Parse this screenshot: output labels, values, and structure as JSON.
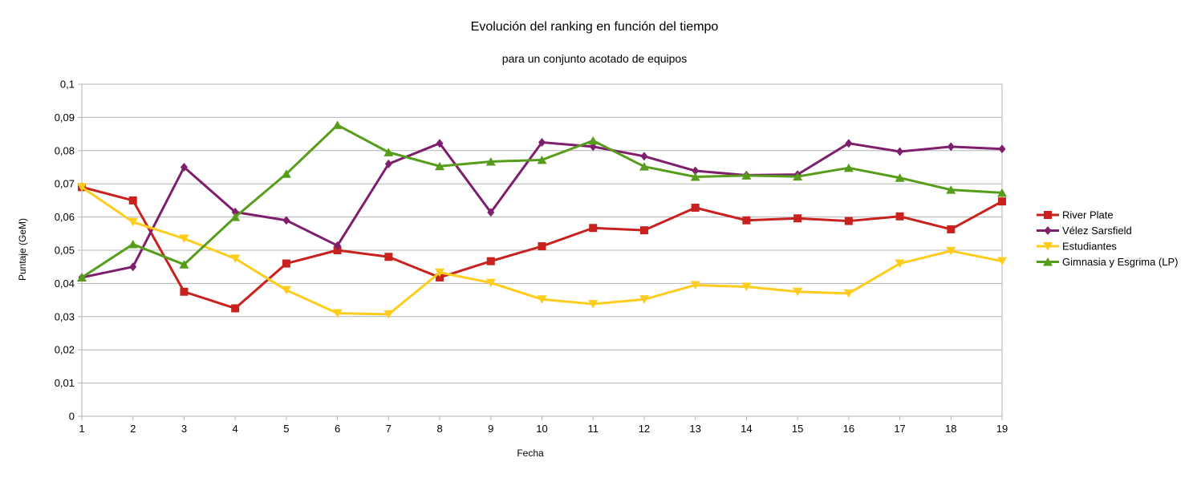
{
  "chart_data": {
    "type": "line",
    "title": "Evolución del ranking en función del tiempo",
    "subtitle": "para un conjunto acotado de equipos",
    "xlabel": "Fecha",
    "ylabel": "Puntaje (GeM)",
    "ylim": [
      0,
      0.1
    ],
    "yticks": [
      "0",
      "0,01",
      "0,02",
      "0,03",
      "0,04",
      "0,05",
      "0,06",
      "0,07",
      "0,08",
      "0,09",
      "0,1"
    ],
    "categories": [
      "1",
      "2",
      "3",
      "4",
      "5",
      "6",
      "7",
      "8",
      "9",
      "10",
      "11",
      "12",
      "13",
      "14",
      "15",
      "16",
      "17",
      "18",
      "19"
    ],
    "grid": true,
    "legend_position": "right",
    "series": [
      {
        "name": "River Plate",
        "color": "#c9211e",
        "marker": "square",
        "values": [
          0.069,
          0.065,
          0.0375,
          0.0325,
          0.046,
          0.05,
          0.048,
          0.0418,
          0.0467,
          0.0512,
          0.0567,
          0.056,
          0.0628,
          0.059,
          0.0596,
          0.0588,
          0.0602,
          0.0563,
          0.0647
        ]
      },
      {
        "name": "Vélez Sarsfield",
        "color": "#7e1f6e",
        "marker": "diamond",
        "values": [
          0.0418,
          0.045,
          0.075,
          0.0615,
          0.059,
          0.0514,
          0.076,
          0.0822,
          0.0614,
          0.0825,
          0.0812,
          0.0783,
          0.0739,
          0.0726,
          0.0728,
          0.0822,
          0.0797,
          0.0812,
          0.0805
        ]
      },
      {
        "name": "Estudiantes",
        "color": "#fdcc1d",
        "marker": "triangle-down",
        "values": [
          0.069,
          0.0585,
          0.0535,
          0.0475,
          0.038,
          0.031,
          0.0307,
          0.0433,
          0.0402,
          0.0352,
          0.0338,
          0.0352,
          0.0395,
          0.039,
          0.0375,
          0.037,
          0.046,
          0.0498,
          0.0467
        ]
      },
      {
        "name": "Gimnasia y Esgrima (LP)",
        "color": "#579d1c",
        "marker": "triangle-up",
        "values": [
          0.0418,
          0.0518,
          0.0457,
          0.06,
          0.073,
          0.0877,
          0.0795,
          0.0753,
          0.0767,
          0.0772,
          0.083,
          0.0752,
          0.0721,
          0.0725,
          0.0722,
          0.0748,
          0.0718,
          0.0682,
          0.0673
        ]
      }
    ]
  }
}
